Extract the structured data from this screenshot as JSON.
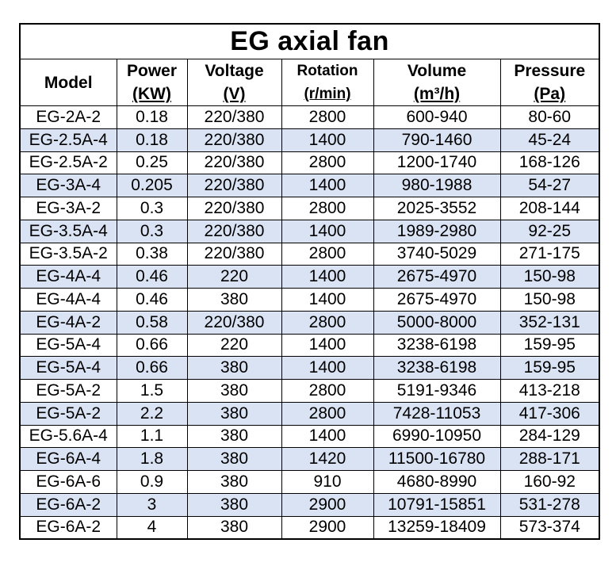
{
  "title": "EG axial fan",
  "headers": {
    "model": "Model",
    "power": "Power",
    "power_unit": "(KW)",
    "voltage": "Voltage",
    "voltage_unit": "(V)",
    "rotation": "Rotation",
    "rotation_unit": "(r/min)",
    "volume": "Volume",
    "volume_unit": "(m³/h)",
    "pressure": "Pressure",
    "pressure_unit": "(Pa)"
  },
  "row_shading_color": "#dae3f3",
  "rows": [
    [
      "EG-2A-2",
      "0.18",
      "220/380",
      "2800",
      "600-940",
      "80-60"
    ],
    [
      "EG-2.5A-4",
      "0.18",
      "220/380",
      "1400",
      "790-1460",
      "45-24"
    ],
    [
      "EG-2.5A-2",
      "0.25",
      "220/380",
      "2800",
      "1200-1740",
      "168-126"
    ],
    [
      "EG-3A-4",
      "0.205",
      "220/380",
      "1400",
      "980-1988",
      "54-27"
    ],
    [
      "EG-3A-2",
      "0.3",
      "220/380",
      "2800",
      "2025-3552",
      "208-144"
    ],
    [
      "EG-3.5A-4",
      "0.3",
      "220/380",
      "1400",
      "1989-2980",
      "92-25"
    ],
    [
      "EG-3.5A-2",
      "0.38",
      "220/380",
      "2800",
      "3740-5029",
      "271-175"
    ],
    [
      "EG-4A-4",
      "0.46",
      "220",
      "1400",
      "2675-4970",
      "150-98"
    ],
    [
      "EG-4A-4",
      "0.46",
      "380",
      "1400",
      "2675-4970",
      "150-98"
    ],
    [
      "EG-4A-2",
      "0.58",
      "220/380",
      "2800",
      "5000-8000",
      "352-131"
    ],
    [
      "EG-5A-4",
      "0.66",
      "220",
      "1400",
      "3238-6198",
      "159-95"
    ],
    [
      "EG-5A-4",
      "0.66",
      "380",
      "1400",
      "3238-6198",
      "159-95"
    ],
    [
      "EG-5A-2",
      "1.5",
      "380",
      "2800",
      "5191-9346",
      "413-218"
    ],
    [
      "EG-5A-2",
      "2.2",
      "380",
      "2800",
      "7428-11053",
      "417-306"
    ],
    [
      "EG-5.6A-4",
      "1.1",
      "380",
      "1400",
      "6990-10950",
      "284-129"
    ],
    [
      "EG-6A-4",
      "1.8",
      "380",
      "1420",
      "11500-16780",
      "288-171"
    ],
    [
      "EG-6A-6",
      "0.9",
      "380",
      "910",
      "4680-8990",
      "160-92"
    ],
    [
      "EG-6A-2",
      "3",
      "380",
      "2900",
      "10791-15851",
      "531-278"
    ],
    [
      "EG-6A-2",
      "4",
      "380",
      "2900",
      "13259-18409",
      "573-374"
    ]
  ]
}
